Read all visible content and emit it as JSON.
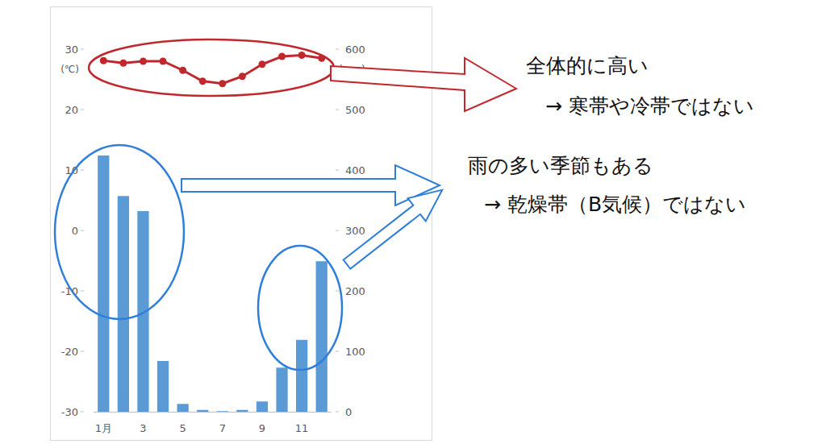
{
  "chart_data": {
    "type": "combo",
    "y_label": "(℃)",
    "y2_label": "(mm)",
    "categories": [
      "1月",
      null,
      "3",
      null,
      "5",
      null,
      "7",
      null,
      "9",
      null,
      "11",
      null
    ],
    "series": [
      {
        "type": "line",
        "color": "#c0282d",
        "marker": "circle",
        "values": [
          28.1,
          27.7,
          28.0,
          28.0,
          26.5,
          24.7,
          24.3,
          25.5,
          27.5,
          28.8,
          29.0,
          28.5
        ]
      },
      {
        "type": "bar",
        "axis": "y2",
        "color": "#5b9bd5",
        "values": [
          424,
          357,
          332,
          84,
          13,
          3,
          1,
          3,
          17,
          73,
          119,
          249
        ]
      }
    ],
    "ylim": [
      -30,
      30
    ],
    "yticks": [
      -30,
      -20,
      -10,
      0,
      10,
      20,
      30
    ],
    "y2lim": [
      0,
      600
    ],
    "y2ticks": [
      0,
      100,
      200,
      300,
      400,
      500,
      600
    ],
    "grid": false,
    "annotations": [
      {
        "text": "全体的に高い",
        "color": "#c0282d"
      },
      {
        "text": "→ 寒帯や冷帯ではない",
        "color": "#c0282d"
      },
      {
        "text": "雨の多い季節もある",
        "color": "#2f7ed8"
      },
      {
        "text": "→ 乾燥帯（B気候）ではない",
        "color": "#2f7ed8"
      }
    ]
  }
}
